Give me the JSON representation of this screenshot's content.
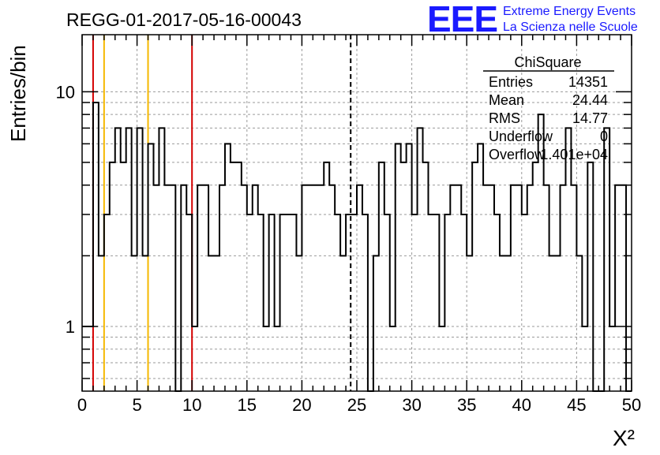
{
  "header": {
    "run_title": "REGG-01-2017-05-16-00043",
    "logo_text": "EEE",
    "logo_line1": "Extreme Energy Events",
    "logo_line2": "La Scienza nelle Scuole"
  },
  "colors": {
    "logo_blue": "#1a1aff",
    "red_lines": "#d40000",
    "yellow_lines": "#f5b800",
    "histogram": "#000000",
    "grid": "#9a9a9a"
  },
  "stats": {
    "title": "ChiSquare",
    "rows": [
      {
        "label": "Entries",
        "value": "14351"
      },
      {
        "label": "Mean",
        "value": "24.44"
      },
      {
        "label": "RMS",
        "value": "14.77"
      },
      {
        "label": "Underflow",
        "value": "0"
      },
      {
        "label": "Overflow",
        "value": "1.401e+04"
      }
    ]
  },
  "chart_data": {
    "type": "histogram",
    "title": "REGG-01-2017-05-16-00043",
    "xlabel": "X²",
    "ylabel": "Entries/bin",
    "xlim": [
      0,
      50
    ],
    "ylim": [
      0.53,
      17.5
    ],
    "yscale": "log",
    "grid": true,
    "x_ticks": [
      0,
      5,
      10,
      15,
      20,
      25,
      30,
      35,
      40,
      45,
      50
    ],
    "x_tick_labels": [
      "0",
      "5",
      "10",
      "15",
      "20",
      "25",
      "30",
      "35",
      "40",
      "45",
      "50"
    ],
    "y_major_ticks": [
      1,
      10
    ],
    "y_tick_labels": [
      "1",
      "10"
    ],
    "bin_width": 0.5,
    "bin_edges_start": 0,
    "values": [
      1,
      1,
      9,
      2,
      3,
      5,
      7,
      5,
      7,
      2,
      7,
      2,
      6,
      4,
      7,
      4,
      4,
      0,
      4,
      3,
      1,
      4,
      4,
      2,
      2,
      4,
      6,
      5,
      5,
      4,
      3,
      4,
      3,
      1,
      3,
      1,
      3,
      3,
      3,
      2,
      4,
      4,
      4,
      4,
      5,
      4,
      3,
      2,
      3,
      3,
      4,
      3,
      0,
      2,
      5,
      3,
      1,
      6,
      5,
      6,
      3,
      7,
      5,
      3,
      3,
      1,
      3,
      4,
      4,
      3,
      2,
      5,
      6,
      4,
      4,
      3,
      2,
      2,
      4,
      4,
      3,
      4,
      5,
      8,
      4,
      2,
      2,
      4,
      7,
      4,
      2,
      1,
      5,
      0,
      0,
      7,
      1,
      4,
      4,
      0
    ],
    "vertical_lines": [
      {
        "x": 1,
        "color": "red",
        "style": "solid"
      },
      {
        "x": 2,
        "color": "yellow",
        "style": "solid"
      },
      {
        "x": 6,
        "color": "yellow",
        "style": "solid"
      },
      {
        "x": 10,
        "color": "red",
        "style": "solid"
      },
      {
        "x": 24.44,
        "color": "black",
        "style": "dashed"
      }
    ]
  }
}
